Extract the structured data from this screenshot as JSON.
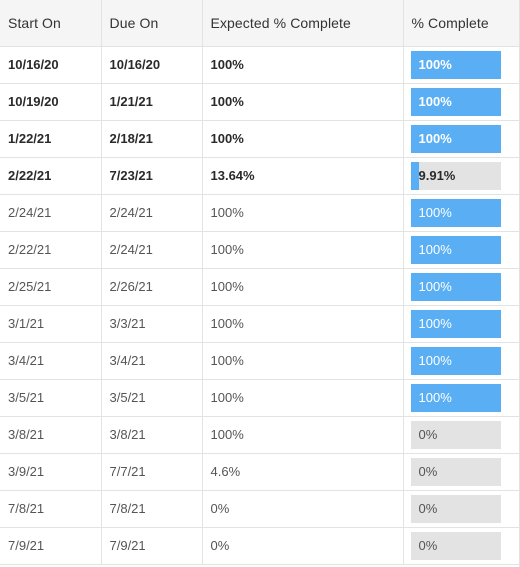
{
  "columns": {
    "start_on": "Start On",
    "due_on": "Due On",
    "expected": "Expected % Complete",
    "complete": "% Complete"
  },
  "colors": {
    "progress_fill": "#5aaef4",
    "progress_track": "#e3e3e3"
  },
  "rows": [
    {
      "start": "10/16/20",
      "due": "10/16/20",
      "expected": "100%",
      "complete_label": "100%",
      "complete_value": 100,
      "bold": true
    },
    {
      "start": "10/19/20",
      "due": "1/21/21",
      "expected": "100%",
      "complete_label": "100%",
      "complete_value": 100,
      "bold": true
    },
    {
      "start": "1/22/21",
      "due": "2/18/21",
      "expected": "100%",
      "complete_label": "100%",
      "complete_value": 100,
      "bold": true
    },
    {
      "start": "2/22/21",
      "due": "7/23/21",
      "expected": "13.64%",
      "complete_label": "9.91%",
      "complete_value": 9.91,
      "bold": true
    },
    {
      "start": "2/24/21",
      "due": "2/24/21",
      "expected": "100%",
      "complete_label": "100%",
      "complete_value": 100,
      "bold": false
    },
    {
      "start": "2/22/21",
      "due": "2/24/21",
      "expected": "100%",
      "complete_label": "100%",
      "complete_value": 100,
      "bold": false
    },
    {
      "start": "2/25/21",
      "due": "2/26/21",
      "expected": "100%",
      "complete_label": "100%",
      "complete_value": 100,
      "bold": false
    },
    {
      "start": "3/1/21",
      "due": "3/3/21",
      "expected": "100%",
      "complete_label": "100%",
      "complete_value": 100,
      "bold": false
    },
    {
      "start": "3/4/21",
      "due": "3/4/21",
      "expected": "100%",
      "complete_label": "100%",
      "complete_value": 100,
      "bold": false
    },
    {
      "start": "3/5/21",
      "due": "3/5/21",
      "expected": "100%",
      "complete_label": "100%",
      "complete_value": 100,
      "bold": false
    },
    {
      "start": "3/8/21",
      "due": "3/8/21",
      "expected": "100%",
      "complete_label": "0%",
      "complete_value": 0,
      "bold": false
    },
    {
      "start": "3/9/21",
      "due": "7/7/21",
      "expected": "4.6%",
      "complete_label": "0%",
      "complete_value": 0,
      "bold": false
    },
    {
      "start": "7/8/21",
      "due": "7/8/21",
      "expected": "0%",
      "complete_label": "0%",
      "complete_value": 0,
      "bold": false
    },
    {
      "start": "7/9/21",
      "due": "7/9/21",
      "expected": "0%",
      "complete_label": "0%",
      "complete_value": 0,
      "bold": false
    }
  ]
}
